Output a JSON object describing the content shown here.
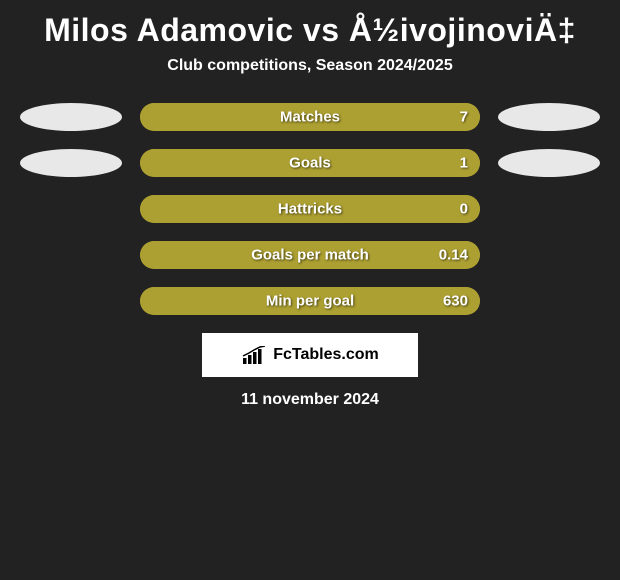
{
  "title": "Milos Adamovic vs Å½ivojinoviÄ‡",
  "subtitle": "Club competitions, Season 2024/2025",
  "date": "11 november 2024",
  "logo_text": "FcTables.com",
  "colors": {
    "background": "#222222",
    "bar_fill": "#ada032",
    "bar_track": "#ada032",
    "ellipse_left": "#e8e8e8",
    "ellipse_right": "#e8e8e8",
    "text": "#ffffff"
  },
  "stats": [
    {
      "label": "Matches",
      "value": "7",
      "fill_pct": 100,
      "show_ellipses": true
    },
    {
      "label": "Goals",
      "value": "1",
      "fill_pct": 100,
      "show_ellipses": true
    },
    {
      "label": "Hattricks",
      "value": "0",
      "fill_pct": 100,
      "show_ellipses": false
    },
    {
      "label": "Goals per match",
      "value": "0.14",
      "fill_pct": 100,
      "show_ellipses": false
    },
    {
      "label": "Min per goal",
      "value": "630",
      "fill_pct": 100,
      "show_ellipses": false
    }
  ]
}
